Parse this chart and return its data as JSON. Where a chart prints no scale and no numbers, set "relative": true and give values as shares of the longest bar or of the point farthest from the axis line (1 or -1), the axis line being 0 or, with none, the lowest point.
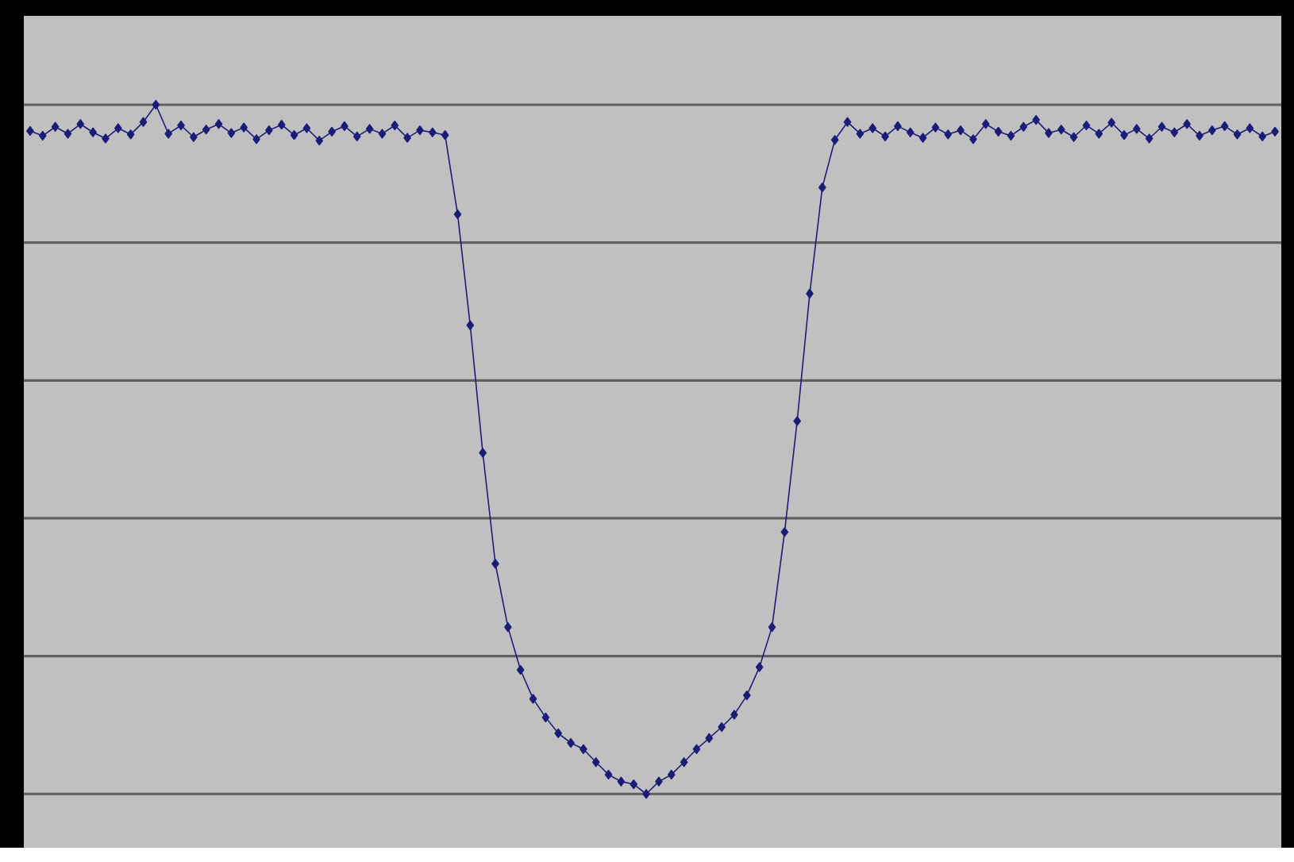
{
  "chart_data": {
    "type": "line",
    "relative": true,
    "grid": "y",
    "marker": "diamond",
    "line_style": "solid",
    "color": "#1c1c78",
    "categories": [
      null,
      null,
      null,
      null,
      null,
      null,
      null,
      null,
      null,
      null,
      null,
      null,
      null,
      null,
      null,
      null,
      null,
      null,
      null,
      null,
      null,
      null,
      null,
      null,
      null,
      null,
      null,
      null,
      null,
      null,
      null,
      null,
      null,
      null,
      null,
      null,
      null,
      null,
      null,
      null,
      null,
      null,
      null,
      null,
      null,
      null,
      null,
      null,
      null,
      null,
      null,
      null,
      null,
      null,
      null,
      null,
      null,
      null,
      null,
      null,
      null,
      null,
      null,
      null,
      null,
      null,
      null,
      null,
      null,
      null,
      null,
      null,
      null,
      null,
      null,
      null,
      null,
      null,
      null,
      null,
      null,
      null,
      null,
      null,
      null,
      null,
      null,
      null,
      null,
      null,
      null,
      null,
      null,
      null,
      null,
      null,
      null,
      null,
      null,
      null
    ],
    "values": [
      0.962,
      0.955,
      0.968,
      0.958,
      0.972,
      0.96,
      0.951,
      0.966,
      0.957,
      0.975,
      1.0,
      0.958,
      0.97,
      0.953,
      0.964,
      0.972,
      0.959,
      0.967,
      0.95,
      0.963,
      0.971,
      0.956,
      0.966,
      0.948,
      0.961,
      0.969,
      0.954,
      0.965,
      0.958,
      0.97,
      0.952,
      0.963,
      0.96,
      0.956,
      0.841,
      0.68,
      0.495,
      0.334,
      0.242,
      0.18,
      0.138,
      0.111,
      0.088,
      0.074,
      0.065,
      0.046,
      0.028,
      0.018,
      0.014,
      0,
      0.018,
      0.028,
      0.046,
      0.065,
      0.081,
      0.097,
      0.115,
      0.143,
      0.184,
      0.242,
      0.38,
      0.541,
      0.726,
      0.88,
      0.949,
      0.975,
      0.958,
      0.966,
      0.954,
      0.969,
      0.96,
      0.952,
      0.967,
      0.957,
      0.963,
      0.95,
      0.972,
      0.961,
      0.955,
      0.968,
      0.978,
      0.959,
      0.964,
      0.953,
      0.97,
      0.958,
      0.974,
      0.956,
      0.965,
      0.951,
      0.968,
      0.96,
      0.972,
      0.955,
      0.963,
      0.969,
      0.957,
      0.966,
      0.954,
      0.961
    ]
  }
}
